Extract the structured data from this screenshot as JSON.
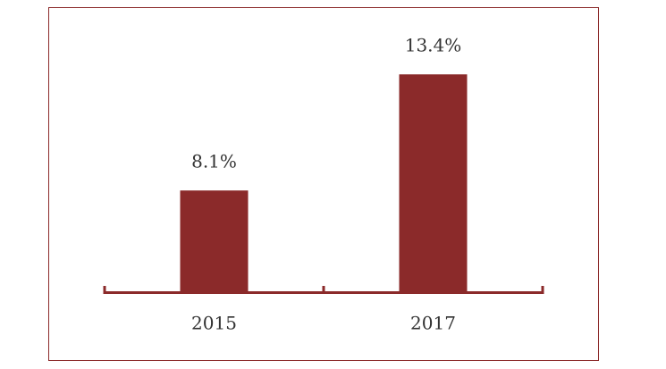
{
  "chart_data": {
    "type": "bar",
    "categories": [
      "2015",
      "2017"
    ],
    "values": [
      8.1,
      13.4
    ],
    "value_labels": [
      "8.1%",
      "13.4%"
    ],
    "color": "#8b2a2a",
    "ylim": [
      3.5,
      15
    ]
  }
}
